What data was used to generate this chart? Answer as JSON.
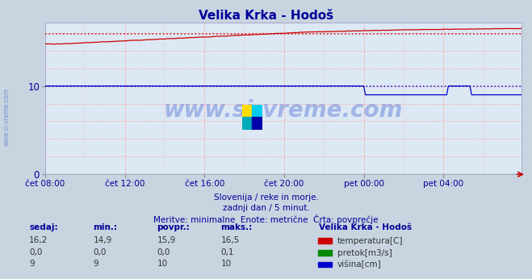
{
  "title": "Velika Krka - Hodoš",
  "title_color": "#000099",
  "fig_bg_color": "#c8d4e0",
  "plot_bg_color": "#dce8f4",
  "temp_color": "#cc0000",
  "flow_color": "#008800",
  "height_color": "#0000cc",
  "avg_temp_val": 15.9,
  "avg_height_val": 10.0,
  "ylim": [
    0,
    17.2
  ],
  "yticks": [
    0,
    10
  ],
  "n_points": 288,
  "x_tick_labels": [
    "čet 08:00",
    "čet 12:00",
    "čet 16:00",
    "čet 20:00",
    "pet 00:00",
    "pet 04:00"
  ],
  "x_tick_positions": [
    0,
    48,
    96,
    144,
    192,
    240
  ],
  "subtitle1": "Slovenija / reke in morje.",
  "subtitle2": "zadnji dan / 5 minut.",
  "subtitle3": "Meritve: minimalne  Enote: metrične  Črta: povprečje",
  "subtitle_color": "#000099",
  "watermark": "www.si-vreme.com",
  "watermark_color": "#3355cc",
  "table_headers": [
    "sedaj:",
    "min.:",
    "povpr.:",
    "maks.:"
  ],
  "table_header_color": "#000099",
  "table_values_temp": [
    "16,2",
    "14,9",
    "15,9",
    "16,5"
  ],
  "table_values_flow": [
    "0,0",
    "0,0",
    "0,0",
    "0,1"
  ],
  "table_values_height": [
    "9",
    "9",
    "10",
    "10"
  ],
  "legend_title": "Velika Krka - Hodoš",
  "legend_items": [
    "temperatura[C]",
    "pretok[m3/s]",
    "višina[cm]"
  ],
  "legend_colors": [
    "#cc0000",
    "#008800",
    "#0000cc"
  ],
  "sidebar_text": "www.si-vreme.com",
  "sidebar_color": "#4466cc",
  "vgrid_color": "#ffaaaa",
  "hgrid_color": "#ffaaaa"
}
